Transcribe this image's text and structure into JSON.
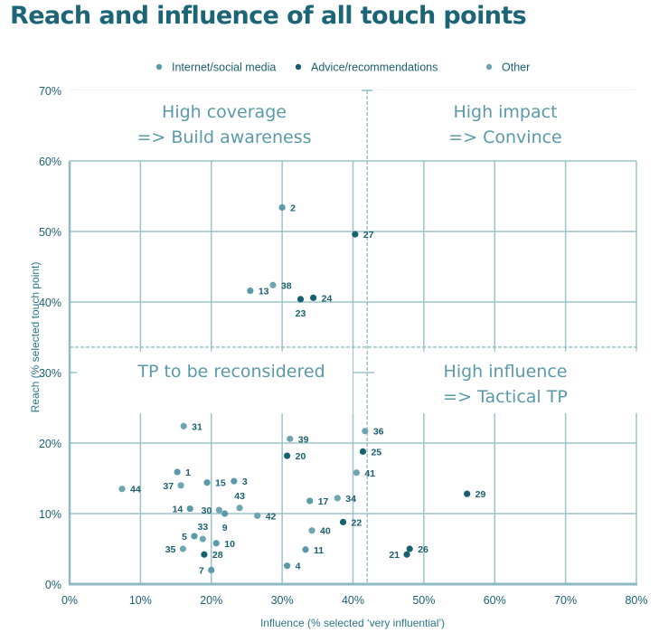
{
  "title": "Reach and influence of all touch points",
  "chart_data": {
    "type": "scatter",
    "title": "Reach and influence of all touch points",
    "xlabel": "Influence (% selected ‘very influential’)",
    "ylabel": "Reach (% selected touch point)",
    "xlim": [
      0,
      80
    ],
    "ylim": [
      0,
      70
    ],
    "x_ticks": [
      "0%",
      "10%",
      "20%",
      "30%",
      "40%",
      "50%",
      "60%",
      "70%",
      "80%"
    ],
    "y_ticks": [
      "0%",
      "10%",
      "20%",
      "30%",
      "40%",
      "50%",
      "60%",
      "70%"
    ],
    "grid": true,
    "legend_position": "top-center",
    "thresholds": {
      "x": 42,
      "y": 33.6
    },
    "colors": {
      "Internet/social media": "#5a9aa8",
      "Advice/recommendations": "#16606f",
      "Other": "#6fa5b1"
    },
    "legend": [
      {
        "name": "Internet/social media",
        "color": "#5a9aa8"
      },
      {
        "name": "Advice/recommendations",
        "color": "#16606f"
      },
      {
        "name": "Other",
        "color": "#6fa5b1"
      }
    ],
    "quadrants": [
      {
        "id": "high-coverage",
        "lines": [
          "High coverage",
          "=> Build awareness"
        ]
      },
      {
        "id": "high-impact",
        "lines": [
          "High impact",
          "=> Convince"
        ]
      },
      {
        "id": "reconsider",
        "lines": [
          "TP to be reconsidered"
        ]
      },
      {
        "id": "high-influence",
        "lines": [
          "High influence",
          "=> Tactical TP"
        ]
      }
    ],
    "points": [
      {
        "id": "1",
        "x": 15.2,
        "y": 15.9,
        "series": "Internet/social media",
        "label_pos": "right"
      },
      {
        "id": "2",
        "x": 30.0,
        "y": 53.4,
        "series": "Internet/social media",
        "label_pos": "right"
      },
      {
        "id": "3",
        "x": 23.2,
        "y": 14.6,
        "series": "Internet/social media",
        "label_pos": "right"
      },
      {
        "id": "4",
        "x": 30.7,
        "y": 2.6,
        "series": "Internet/social media",
        "label_pos": "right"
      },
      {
        "id": "5",
        "x": 17.6,
        "y": 6.8,
        "series": "Internet/social media",
        "label_pos": "left"
      },
      {
        "id": "7",
        "x": 20.0,
        "y": 2.0,
        "series": "Internet/social media",
        "label_pos": "left"
      },
      {
        "id": "9",
        "x": 21.9,
        "y": 10.0,
        "series": "Internet/social media",
        "label_pos": "below"
      },
      {
        "id": "10",
        "x": 20.7,
        "y": 5.8,
        "series": "Internet/social media",
        "label_pos": "right"
      },
      {
        "id": "11",
        "x": 33.3,
        "y": 4.9,
        "series": "Internet/social media",
        "label_pos": "right"
      },
      {
        "id": "13",
        "x": 25.5,
        "y": 41.6,
        "series": "Internet/social media",
        "label_pos": "right"
      },
      {
        "id": "14",
        "x": 17.0,
        "y": 10.7,
        "series": "Internet/social media",
        "label_pos": "left"
      },
      {
        "id": "15",
        "x": 19.4,
        "y": 14.4,
        "series": "Internet/social media",
        "label_pos": "right"
      },
      {
        "id": "17",
        "x": 33.9,
        "y": 11.8,
        "series": "Internet/social media",
        "label_pos": "right"
      },
      {
        "id": "20",
        "x": 30.7,
        "y": 18.2,
        "series": "Advice/recommendations",
        "label_pos": "right"
      },
      {
        "id": "21",
        "x": 47.6,
        "y": 4.2,
        "series": "Advice/recommendations",
        "label_pos": "left"
      },
      {
        "id": "22",
        "x": 38.6,
        "y": 8.8,
        "series": "Advice/recommendations",
        "label_pos": "right"
      },
      {
        "id": "23",
        "x": 32.6,
        "y": 40.4,
        "series": "Advice/recommendations",
        "label_pos": "below"
      },
      {
        "id": "24",
        "x": 34.4,
        "y": 40.6,
        "series": "Advice/recommendations",
        "label_pos": "right"
      },
      {
        "id": "25",
        "x": 41.4,
        "y": 18.8,
        "series": "Advice/recommendations",
        "label_pos": "right"
      },
      {
        "id": "26",
        "x": 48.0,
        "y": 5.0,
        "series": "Advice/recommendations",
        "label_pos": "right"
      },
      {
        "id": "27",
        "x": 40.3,
        "y": 49.6,
        "series": "Advice/recommendations",
        "label_pos": "right"
      },
      {
        "id": "28",
        "x": 19.0,
        "y": 4.2,
        "series": "Advice/recommendations",
        "label_pos": "right"
      },
      {
        "id": "29",
        "x": 56.1,
        "y": 12.8,
        "series": "Advice/recommendations",
        "label_pos": "right"
      },
      {
        "id": "30",
        "x": 21.1,
        "y": 10.5,
        "series": "Other",
        "label_pos": "left"
      },
      {
        "id": "31",
        "x": 16.1,
        "y": 22.4,
        "series": "Other",
        "label_pos": "right"
      },
      {
        "id": "33",
        "x": 18.8,
        "y": 6.4,
        "series": "Other",
        "label_pos": "above"
      },
      {
        "id": "34",
        "x": 37.8,
        "y": 12.2,
        "series": "Other",
        "label_pos": "right"
      },
      {
        "id": "35",
        "x": 16.0,
        "y": 5.0,
        "series": "Other",
        "label_pos": "left"
      },
      {
        "id": "36",
        "x": 41.7,
        "y": 21.7,
        "series": "Other",
        "label_pos": "right"
      },
      {
        "id": "37",
        "x": 15.7,
        "y": 14.0,
        "series": "Other",
        "label_pos": "left"
      },
      {
        "id": "38",
        "x": 28.7,
        "y": 42.4,
        "series": "Other",
        "label_pos": "right"
      },
      {
        "id": "39",
        "x": 31.1,
        "y": 20.6,
        "series": "Other",
        "label_pos": "right"
      },
      {
        "id": "40",
        "x": 34.2,
        "y": 7.6,
        "series": "Other",
        "label_pos": "right"
      },
      {
        "id": "41",
        "x": 40.5,
        "y": 15.8,
        "series": "Other",
        "label_pos": "right"
      },
      {
        "id": "42",
        "x": 26.5,
        "y": 9.7,
        "series": "Other",
        "label_pos": "right"
      },
      {
        "id": "43",
        "x": 24.0,
        "y": 10.8,
        "series": "Other",
        "label_pos": "above"
      },
      {
        "id": "44",
        "x": 7.4,
        "y": 13.5,
        "series": "Other",
        "label_pos": "right"
      }
    ]
  }
}
